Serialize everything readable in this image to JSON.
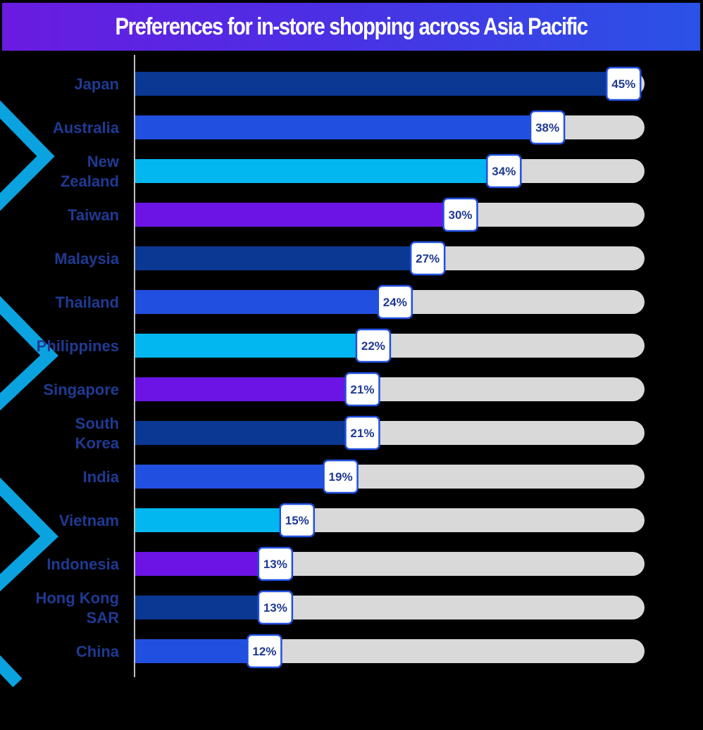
{
  "chart_data": {
    "type": "bar",
    "orientation": "horizontal",
    "title": "Preferences for in-store shopping across Asia Pacific",
    "categories": [
      [
        "Japan"
      ],
      [
        "Australia"
      ],
      [
        "New",
        "Zealand"
      ],
      [
        "Taiwan"
      ],
      [
        "Malaysia"
      ],
      [
        "Thailand"
      ],
      [
        "Philippines"
      ],
      [
        "Singapore"
      ],
      [
        "South",
        "Korea"
      ],
      [
        "India"
      ],
      [
        "Vietnam"
      ],
      [
        "Indonesia"
      ],
      [
        "Hong Kong",
        "SAR"
      ],
      [
        "China"
      ]
    ],
    "values": [
      45,
      38,
      34,
      30,
      27,
      24,
      22,
      21,
      21,
      19,
      15,
      13,
      13,
      12
    ],
    "value_labels": [
      "45%",
      "38%",
      "34%",
      "30%",
      "27%",
      "24%",
      "22%",
      "21%",
      "21%",
      "19%",
      "15%",
      "13%",
      "13%",
      "12%"
    ],
    "xlim": [
      0,
      50
    ],
    "bar_colors": [
      "#0a3893",
      "#2150e0",
      "#02b7f0",
      "#6c14e6",
      "#0a3893",
      "#2150e0",
      "#02b7f0",
      "#6c14e6",
      "#0a3893",
      "#2150e0",
      "#02b7f0",
      "#6c14e6",
      "#0a3893",
      "#2150e0"
    ],
    "track_color": "#d9d9d9",
    "label_color": "#1f3a93",
    "grid": false,
    "legend": "none"
  },
  "colors": {
    "background": "#000000",
    "title_text": "#ffffff",
    "decoration": "#0aa3e0"
  }
}
